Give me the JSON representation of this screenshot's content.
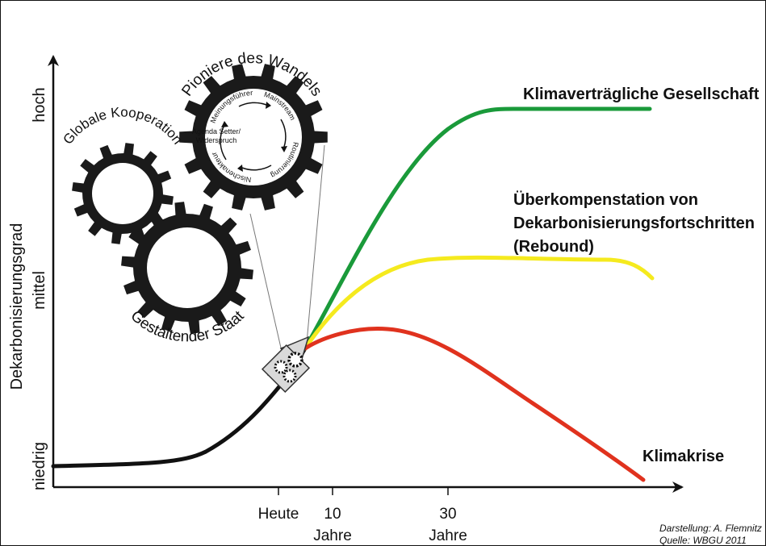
{
  "axes": {
    "y_title": "Dekarbonisierungsgrad",
    "y_levels": [
      "niedrig",
      "mittel",
      "hoch"
    ],
    "x_ticks": [
      {
        "line1": "Heute",
        "line2": ""
      },
      {
        "line1": "10",
        "line2": "Jahre"
      },
      {
        "line1": "30",
        "line2": "Jahre"
      }
    ]
  },
  "scenarios": {
    "green": {
      "label": "Klimaverträgliche Gesellschaft",
      "color": "#1a9a3a"
    },
    "yellow": {
      "label_lines": [
        "Überkompenstation von",
        "Dekarbonisierungsfortschritten",
        "(Rebound)"
      ],
      "color": "#f5ea1e"
    },
    "red": {
      "label": "Klimakrise",
      "color": "#e0321e"
    },
    "history": {
      "color": "#111111"
    }
  },
  "gears": {
    "top": {
      "title": "Pioniere des Wandels",
      "cycle": [
        "Meinungsführer",
        "Mainstream",
        "Routinierung",
        "Nischenakteur"
      ],
      "center_lines": [
        "Agenda Setter/",
        "Widerspruch"
      ]
    },
    "left": {
      "title": "Globale Kooperation"
    },
    "bottom": {
      "title": "Gestaltender Staat"
    }
  },
  "credits": [
    "Darstellung: A. Flemnitz",
    "Quelle: WBGU 2011"
  ]
}
